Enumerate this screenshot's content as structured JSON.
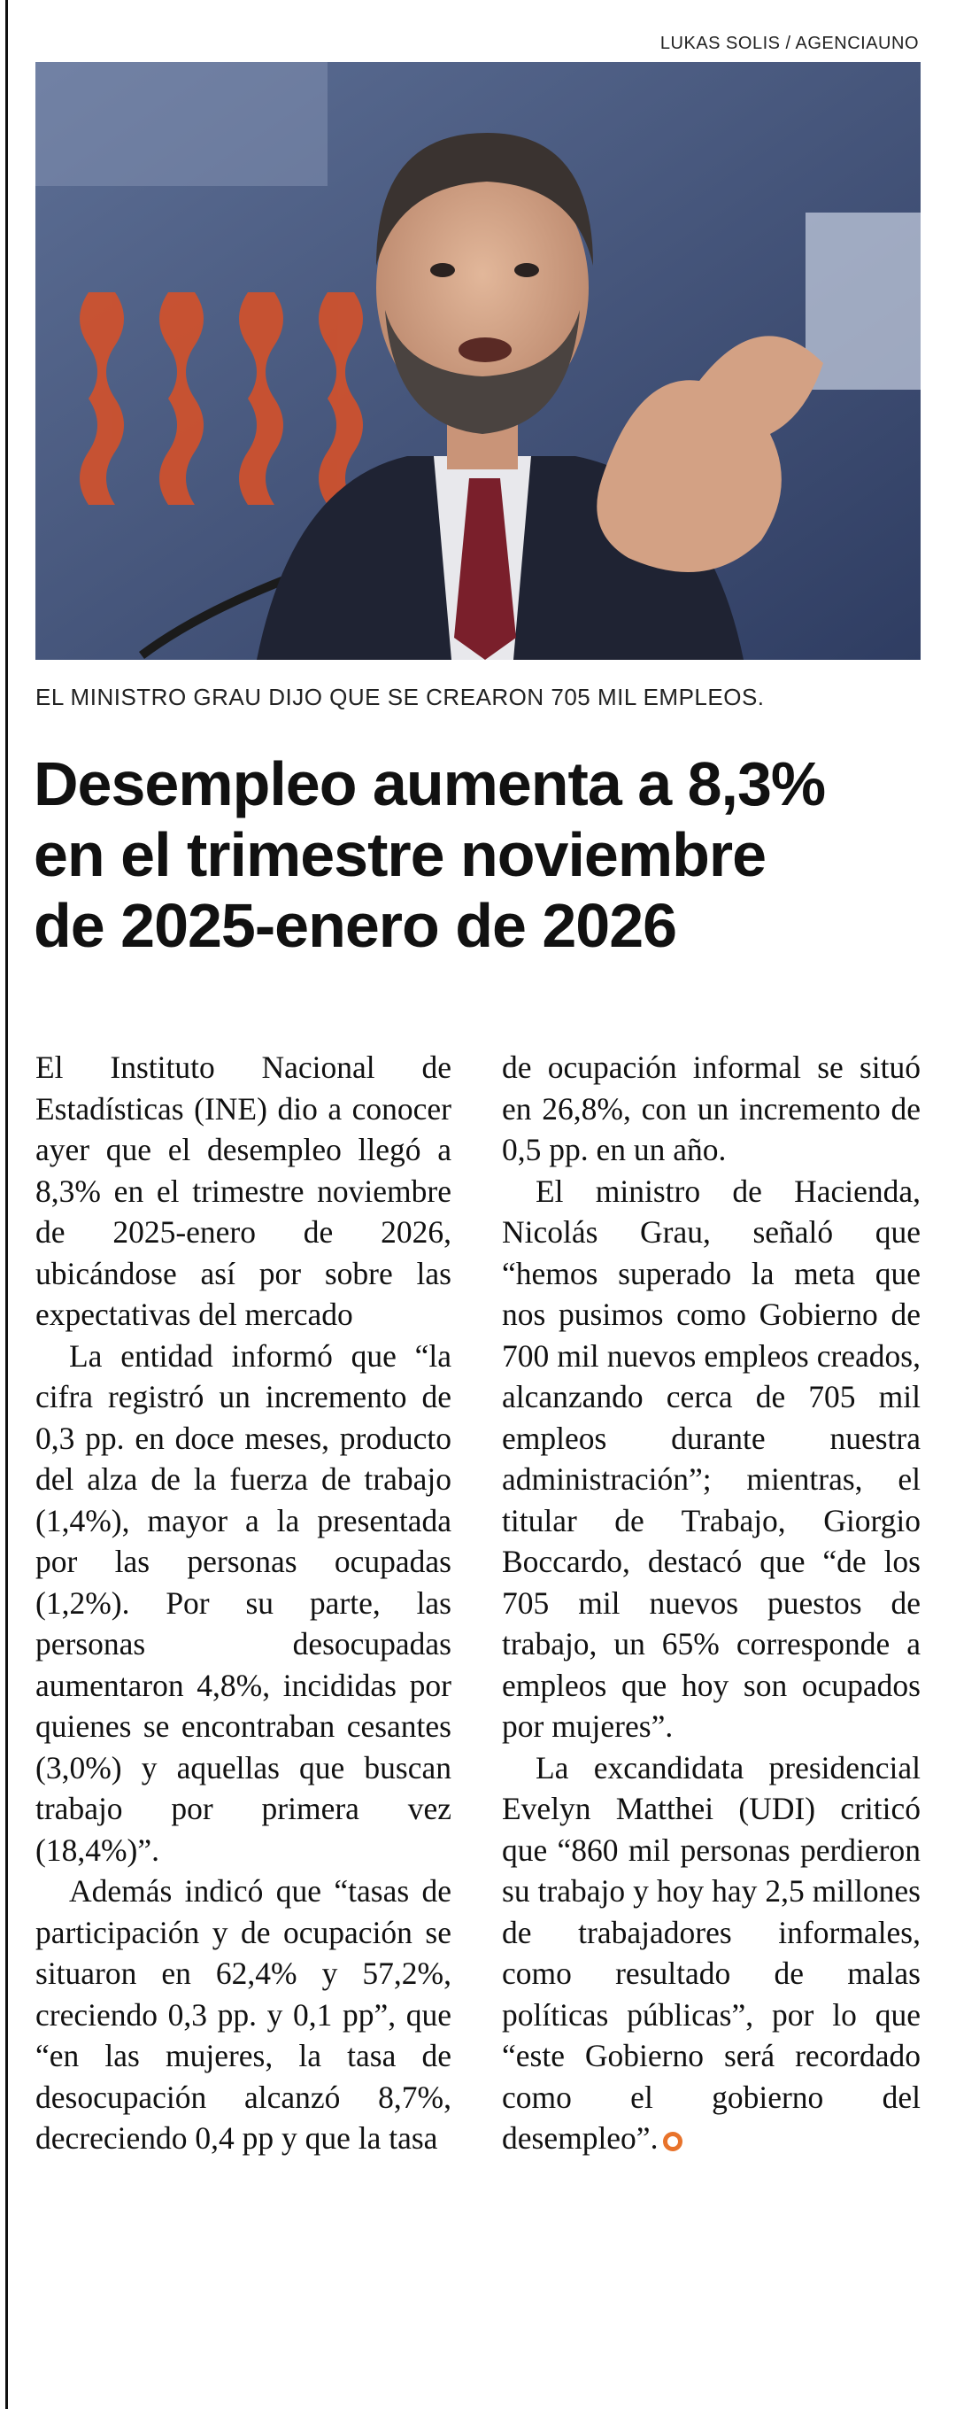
{
  "photo": {
    "credit": "LUKAS SOLIS / AGENCIAUNO",
    "caption": "EL MINISTRO GRAU DIJO QUE SE CREARON 705 MIL EMPLEOS."
  },
  "headline": {
    "line1": "Desempleo aumenta a 8,3%",
    "line2": "en el trimestre noviembre",
    "line3": "de 2025-enero de 2026"
  },
  "body": {
    "left": [
      "El Instituto Nacional de Estadísticas (INE) dio a conocer ayer que el desempleo llegó a 8,3% en el trimestre noviembre de 2025-enero de 2026, ubicándose así por sobre las expectativas del mercado",
      "La entidad informó que “la cifra registró un incremento de 0,3 pp. en doce meses, producto del alza de la fuerza de trabajo (1,4%), mayor a la presentada por las personas ocupadas (1,2%). Por su parte, las personas desocupadas aumentaron 4,8%, incididas por quienes se encontraban cesantes (3,0%) y aquellas que buscan trabajo por primera vez (18,4%)”.",
      "Además indicó que “tasas de participación y de ocupación se situaron en 62,4% y 57,2%, creciendo 0,3 pp. y 0,1 pp”, que “en las mujeres, la tasa de desocupación alcanzó 8,7%, decreciendo 0,4 pp y que la tasa"
    ],
    "right": [
      "de ocupación informal se situó en 26,8%, con un incremento de 0,5 pp. en un año.",
      "El ministro de Hacienda, Nicolás Grau, señaló que “hemos superado la meta que nos pusimos como Gobierno de 700 mil nuevos empleos creados, alcanzando cerca de 705 mil empleos durante nuestra administración”; mientras, el titular de Trabajo, Giorgio Boccardo, destacó que “de los 705 mil nuevos puestos de trabajo, un 65% corresponde a empleos que hoy son ocupados por mujeres”.",
      "La excandidata presidencial Evelyn Matthei (UDI) criticó que “860 mil personas perdieron su trabajo y hoy hay 2,5 millones de trabajadores informales, como resultado de malas políticas públicas”, por lo que “este Gobierno será recordado como el gobierno del desempleo”."
    ]
  },
  "colors": {
    "end_mark": "#e8732b",
    "background_accent": "#c8481e"
  }
}
